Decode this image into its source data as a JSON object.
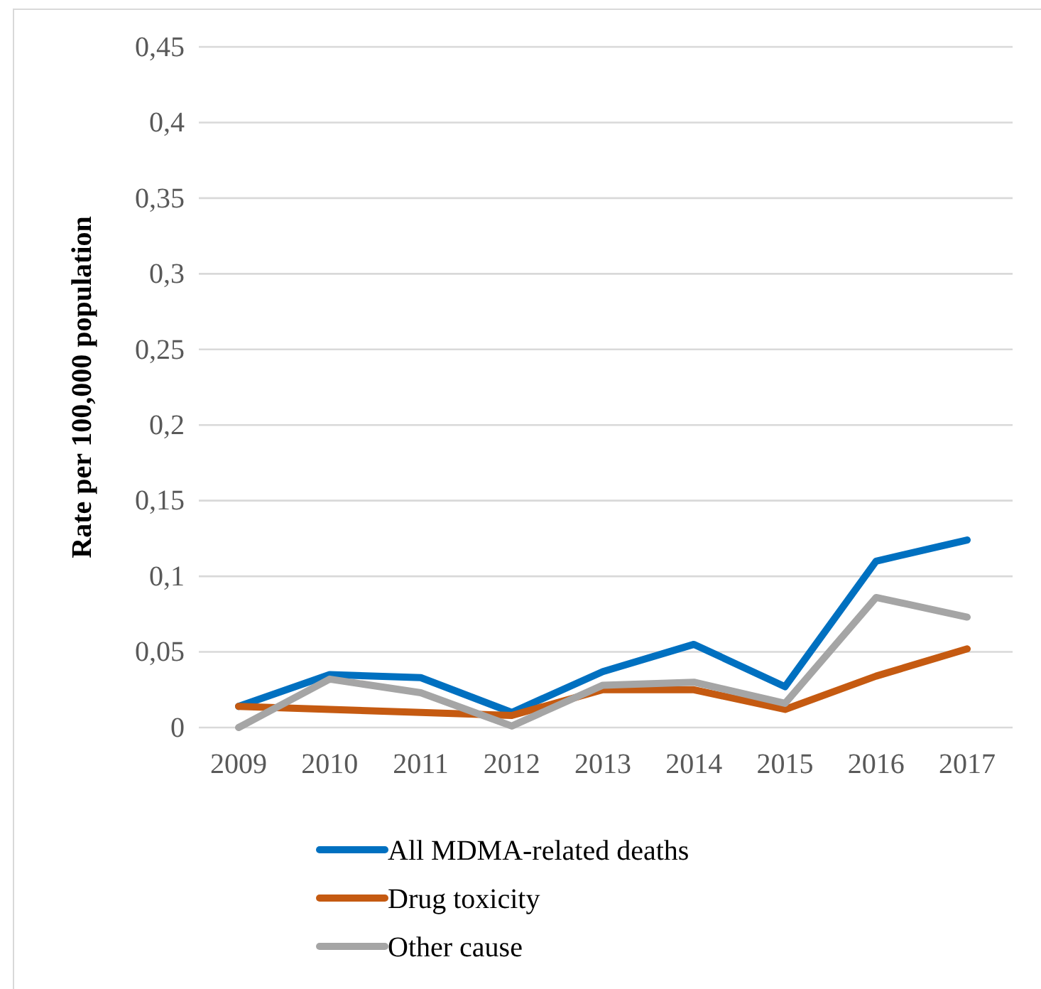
{
  "chart_data": {
    "type": "line",
    "ylabel": "Rate per 100,000 population",
    "categories": [
      "2009",
      "2010",
      "2011",
      "2012",
      "2013",
      "2014",
      "2015",
      "2016",
      "2017"
    ],
    "series": [
      {
        "name": "All MDMA-related deaths",
        "color": "#0070c0",
        "values": [
          0.014,
          0.035,
          0.033,
          0.01,
          0.037,
          0.055,
          0.027,
          0.11,
          0.124
        ]
      },
      {
        "name": "Drug toxicity",
        "color": "#c55a11",
        "values": [
          0.014,
          0.012,
          0.01,
          0.008,
          0.025,
          0.025,
          0.012,
          0.034,
          0.052
        ]
      },
      {
        "name": "Other cause",
        "color": "#a5a5a5",
        "values": [
          0,
          0.032,
          0.023,
          0.001,
          0.028,
          0.03,
          0.016,
          0.086,
          0.073
        ]
      }
    ],
    "ylim": [
      0,
      0.45
    ],
    "yticks": [
      {
        "value": 0,
        "label": "0"
      },
      {
        "value": 0.05,
        "label": "0,05"
      },
      {
        "value": 0.1,
        "label": "0,1"
      },
      {
        "value": 0.15,
        "label": "0,15"
      },
      {
        "value": 0.2,
        "label": "0,2"
      },
      {
        "value": 0.25,
        "label": "0,25"
      },
      {
        "value": 0.3,
        "label": "0,3"
      },
      {
        "value": 0.35,
        "label": "0,35"
      },
      {
        "value": 0.4,
        "label": "0,4"
      },
      {
        "value": 0.45,
        "label": "0,45"
      }
    ],
    "grid": "y",
    "legend": "bottom",
    "marker": "none",
    "line_style": "solid"
  }
}
